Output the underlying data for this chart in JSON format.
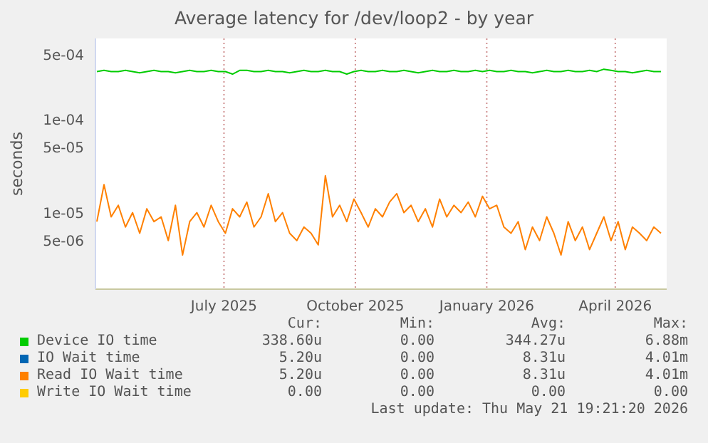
{
  "chart_data": {
    "type": "line",
    "title": "Average latency for /dev/loop2 - by year",
    "ylabel": "seconds",
    "log": true,
    "grid": true,
    "legend": "bottom",
    "marker": "none",
    "line_style": "solid",
    "xlim": [
      "2025-04-17",
      "2026-05-22"
    ],
    "xticks": [
      {
        "value": "2025-07-16",
        "label": "July 2025"
      },
      {
        "value": "2025-10-16",
        "label": "October 2025"
      },
      {
        "value": "2026-01-16",
        "label": "January 2026"
      },
      {
        "value": "2026-04-16",
        "label": "April 2026"
      }
    ],
    "ylim": [
      1.5e-06,
      0.00075
    ],
    "yticks": [
      {
        "value": 0.0005,
        "label": "5e-04"
      },
      {
        "value": 0.0001,
        "label": "1e-04"
      },
      {
        "value": 5e-05,
        "label": "5e-05"
      },
      {
        "value": 1e-05,
        "label": "1e-05"
      },
      {
        "value": 5e-06,
        "label": "5e-06"
      }
    ],
    "x": [
      "2025-04-18",
      "2025-04-23",
      "2025-04-28",
      "2025-05-03",
      "2025-05-08",
      "2025-05-13",
      "2025-05-18",
      "2025-05-23",
      "2025-05-28",
      "2025-06-02",
      "2025-06-07",
      "2025-06-12",
      "2025-06-17",
      "2025-06-22",
      "2025-06-27",
      "2025-07-02",
      "2025-07-07",
      "2025-07-12",
      "2025-07-17",
      "2025-07-22",
      "2025-07-27",
      "2025-08-01",
      "2025-08-06",
      "2025-08-11",
      "2025-08-16",
      "2025-08-21",
      "2025-08-26",
      "2025-08-31",
      "2025-09-05",
      "2025-09-10",
      "2025-09-15",
      "2025-09-20",
      "2025-09-25",
      "2025-09-30",
      "2025-10-05",
      "2025-10-10",
      "2025-10-15",
      "2025-10-20",
      "2025-10-25",
      "2025-10-30",
      "2025-11-04",
      "2025-11-09",
      "2025-11-14",
      "2025-11-19",
      "2025-11-24",
      "2025-11-29",
      "2025-12-04",
      "2025-12-09",
      "2025-12-14",
      "2025-12-19",
      "2025-12-24",
      "2025-12-29",
      "2026-01-03",
      "2026-01-08",
      "2026-01-13",
      "2026-01-18",
      "2026-01-23",
      "2026-01-28",
      "2026-02-02",
      "2026-02-07",
      "2026-02-12",
      "2026-02-17",
      "2026-02-22",
      "2026-02-27",
      "2026-03-04",
      "2026-03-09",
      "2026-03-14",
      "2026-03-19",
      "2026-03-24",
      "2026-03-29",
      "2026-04-03",
      "2026-04-08",
      "2026-04-13",
      "2026-04-18",
      "2026-04-23",
      "2026-04-28",
      "2026-05-03",
      "2026-05-08",
      "2026-05-13",
      "2026-05-18"
    ],
    "series": [
      {
        "name": "Device IO time",
        "color": "#00cc00",
        "values": [
          0.00033,
          0.00034,
          0.00033,
          0.00033,
          0.00034,
          0.00033,
          0.00032,
          0.00033,
          0.00034,
          0.00033,
          0.00033,
          0.00032,
          0.00033,
          0.00034,
          0.00033,
          0.00033,
          0.00034,
          0.00033,
          0.00033,
          0.00031,
          0.00034,
          0.00034,
          0.00033,
          0.00033,
          0.00034,
          0.00033,
          0.00033,
          0.00032,
          0.00033,
          0.00034,
          0.00033,
          0.00033,
          0.00034,
          0.00033,
          0.00033,
          0.00031,
          0.00033,
          0.00034,
          0.00033,
          0.00033,
          0.00034,
          0.00033,
          0.00033,
          0.00034,
          0.00033,
          0.00032,
          0.00033,
          0.00034,
          0.00033,
          0.00033,
          0.00034,
          0.00033,
          0.00033,
          0.00034,
          0.00033,
          0.00034,
          0.00033,
          0.00033,
          0.00034,
          0.00033,
          0.00033,
          0.00032,
          0.00033,
          0.00034,
          0.00033,
          0.00033,
          0.00034,
          0.00033,
          0.00033,
          0.00034,
          0.00033,
          0.00035,
          0.00034,
          0.00033,
          0.00033,
          0.00032,
          0.00033,
          0.00034,
          0.00033,
          0.00033
        ]
      },
      {
        "name": "IO Wait time",
        "color": "#0066b3",
        "values": [
          null,
          null,
          null,
          null,
          null,
          null,
          null,
          null,
          null,
          null,
          null,
          null,
          null,
          null,
          null,
          null,
          null,
          null,
          null,
          null,
          null,
          null,
          null,
          null,
          null,
          null,
          null,
          null,
          null,
          null,
          null,
          null,
          null,
          null,
          null,
          null,
          null,
          null,
          null,
          null,
          null,
          null,
          null,
          null,
          null,
          null,
          null,
          null,
          null,
          null,
          null,
          null,
          null,
          null,
          null,
          null,
          null,
          null,
          null,
          null,
          null,
          null,
          null,
          null,
          null,
          null,
          null,
          null,
          null,
          null,
          null,
          null,
          null,
          null,
          null,
          null,
          null,
          null,
          null,
          null
        ]
      },
      {
        "name": "Read IO Wait time",
        "color": "#ff8000",
        "values": [
          8e-06,
          2e-05,
          9e-06,
          1.2e-05,
          7e-06,
          1e-05,
          6e-06,
          1.1e-05,
          8e-06,
          9e-06,
          5e-06,
          1.2e-05,
          3.5e-06,
          8e-06,
          1e-05,
          7e-06,
          1.2e-05,
          8e-06,
          6e-06,
          1.1e-05,
          9e-06,
          1.3e-05,
          7e-06,
          9e-06,
          1.6e-05,
          8e-06,
          1e-05,
          6e-06,
          5e-06,
          7e-06,
          6e-06,
          4.5e-06,
          2.5e-05,
          9e-06,
          1.2e-05,
          8e-06,
          1.4e-05,
          1e-05,
          7e-06,
          1.1e-05,
          9e-06,
          1.3e-05,
          1.6e-05,
          1e-05,
          1.2e-05,
          8e-06,
          1.1e-05,
          7e-06,
          1.4e-05,
          9e-06,
          1.2e-05,
          1e-05,
          1.3e-05,
          9e-06,
          1.5e-05,
          1.1e-05,
          1.2e-05,
          7e-06,
          6e-06,
          8e-06,
          4e-06,
          7e-06,
          5e-06,
          9e-06,
          6e-06,
          3.5e-06,
          8e-06,
          5e-06,
          7e-06,
          4e-06,
          6e-06,
          9e-06,
          5e-06,
          8e-06,
          4e-06,
          7e-06,
          6e-06,
          5e-06,
          7e-06,
          6e-06
        ]
      },
      {
        "name": "Write IO Wait time",
        "color": "#ffcc00",
        "values": [
          null,
          null,
          null,
          null,
          null,
          null,
          null,
          null,
          null,
          null,
          null,
          null,
          null,
          null,
          null,
          null,
          null,
          null,
          null,
          null,
          null,
          null,
          null,
          null,
          null,
          null,
          null,
          null,
          null,
          null,
          null,
          null,
          null,
          null,
          null,
          null,
          null,
          null,
          null,
          null,
          null,
          null,
          null,
          null,
          null,
          null,
          null,
          null,
          null,
          null,
          null,
          null,
          null,
          null,
          null,
          null,
          null,
          null,
          null,
          null,
          null,
          null,
          null,
          null,
          null,
          null,
          null,
          null,
          null,
          null,
          null,
          null,
          null,
          null,
          null,
          null,
          null,
          null,
          null,
          null
        ]
      }
    ],
    "annotations": [
      "Cur:",
      "Min:",
      "Avg:",
      "Max:",
      "338.60u",
      "0.00",
      "344.27u",
      "6.88m",
      "5.20u",
      "0.00",
      "8.31u",
      "4.01m",
      "5.20u",
      "0.00",
      "8.31u",
      "4.01m",
      "0.00",
      "0.00",
      "0.00",
      "0.00",
      "Last update: Thu May 21 19:21:20 2026"
    ]
  }
}
